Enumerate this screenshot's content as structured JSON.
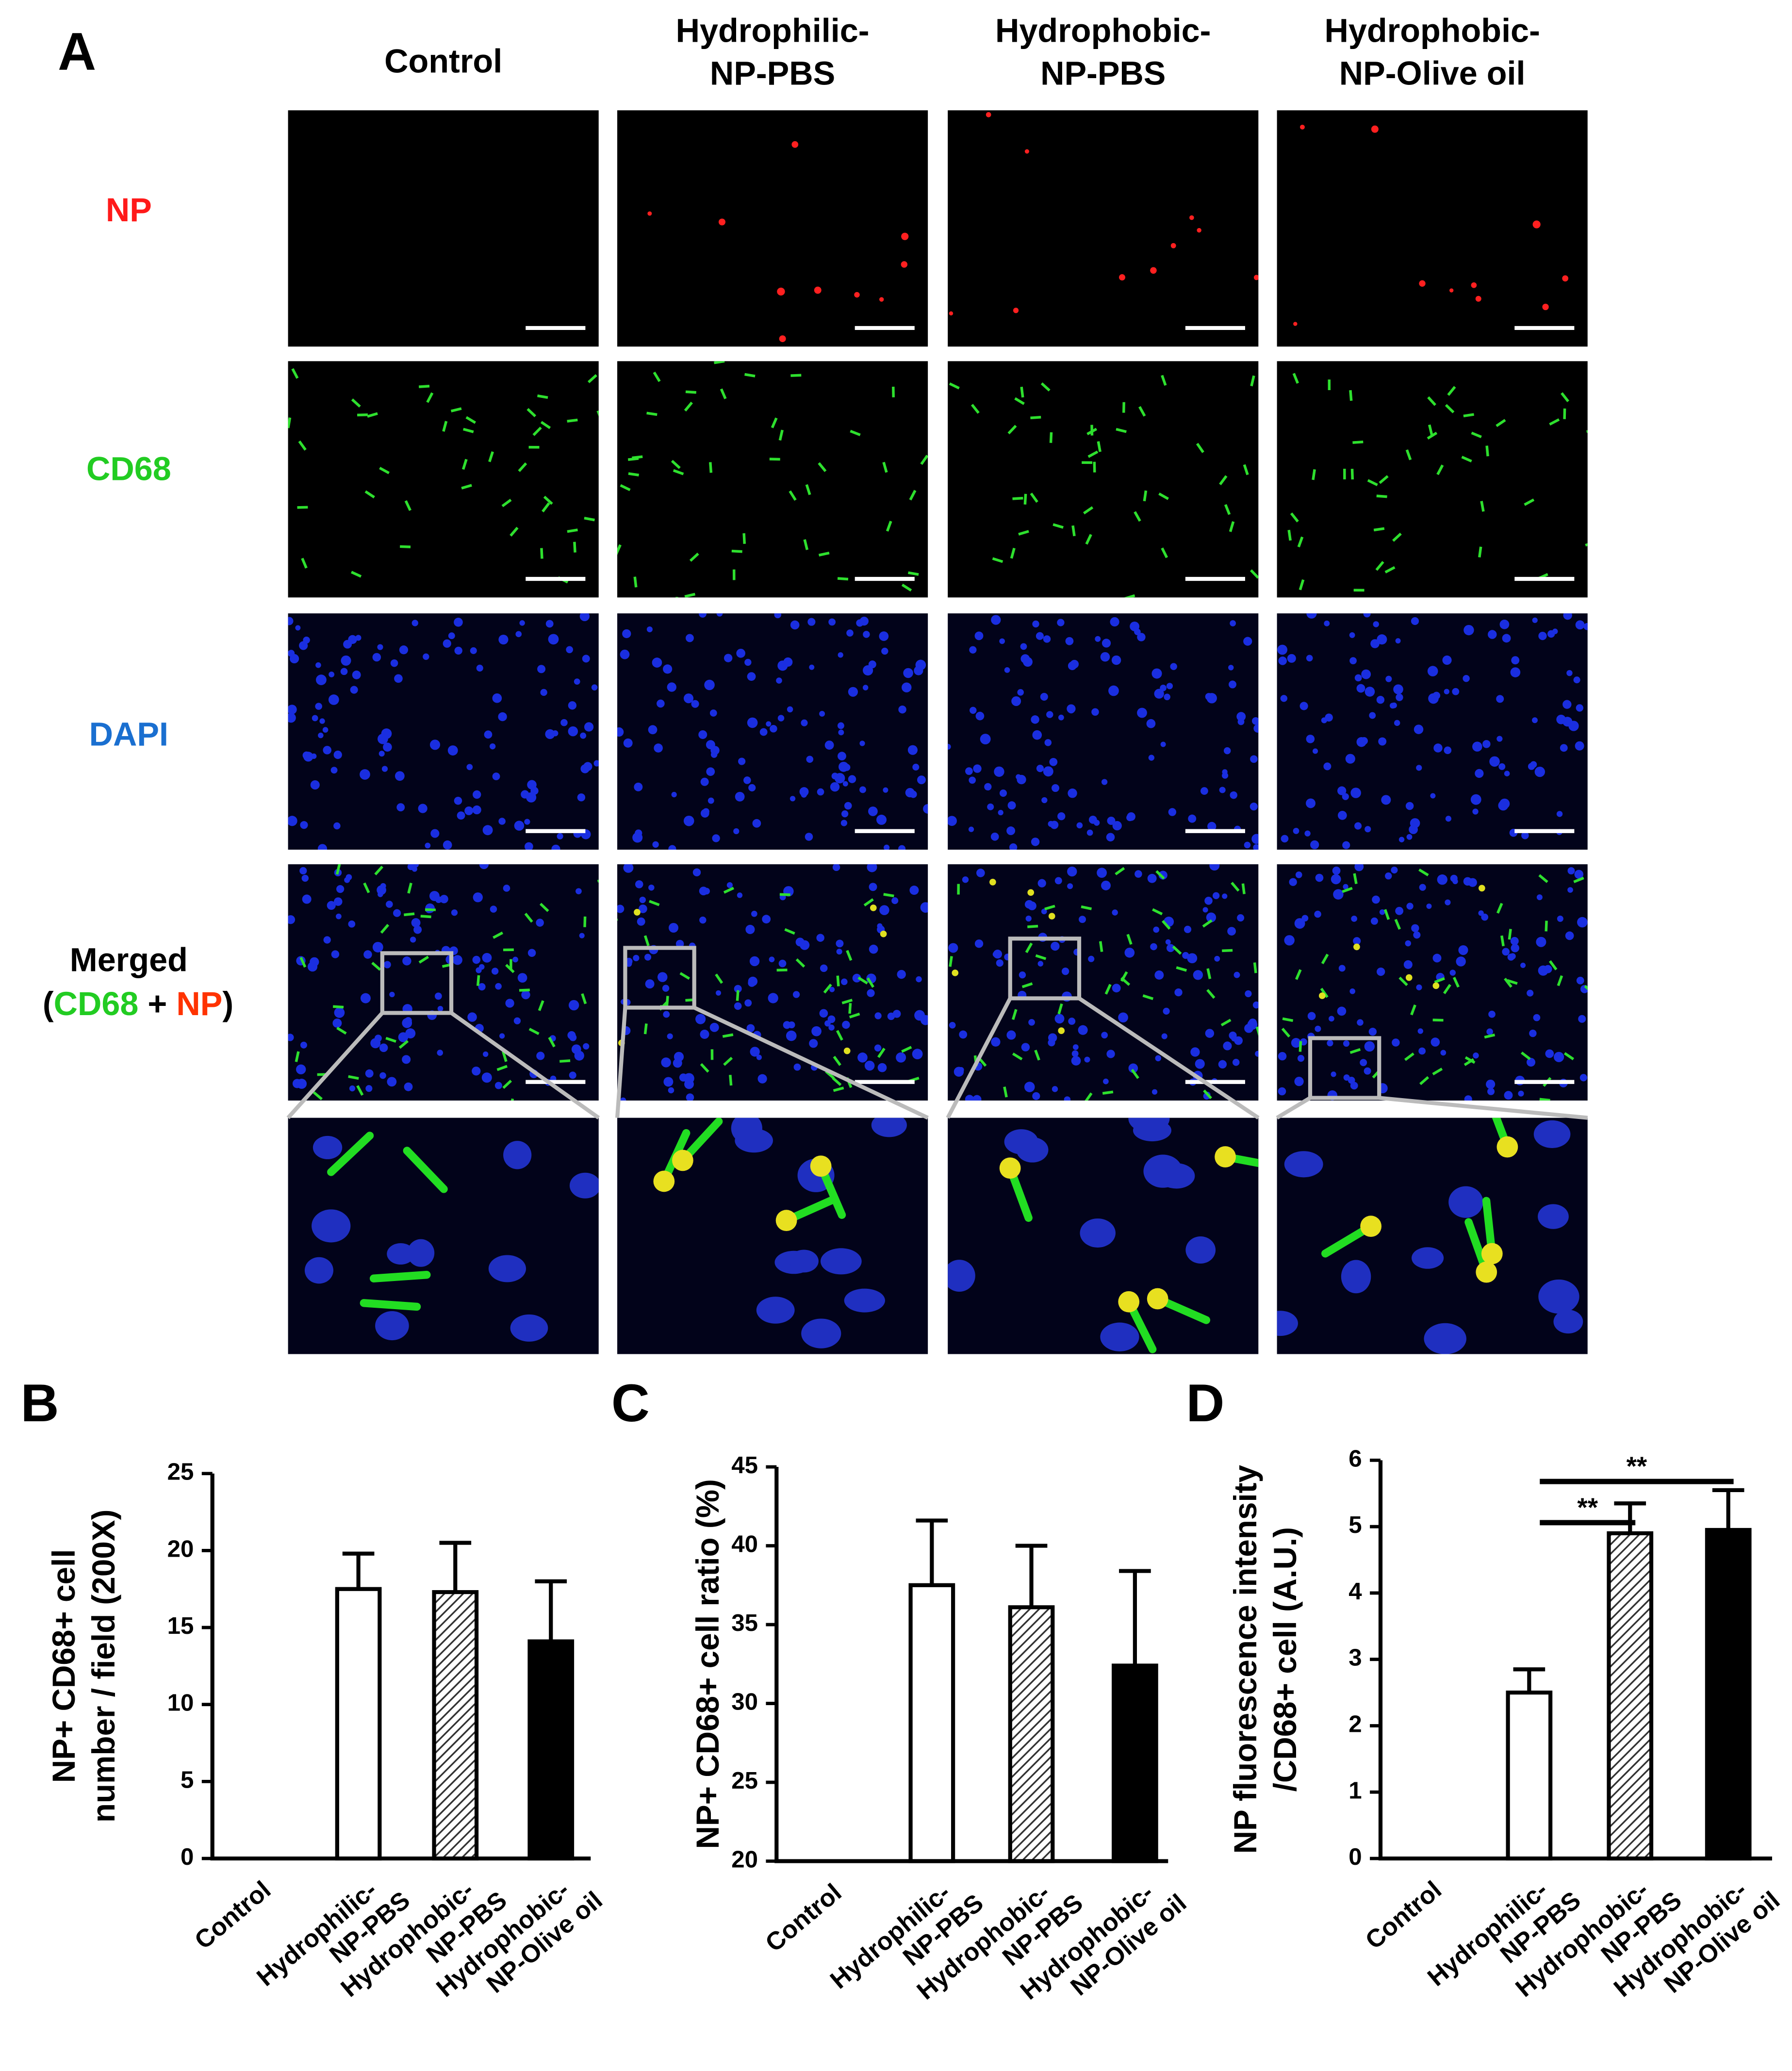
{
  "figure": {
    "panel": "A",
    "columns": [
      [
        "Control"
      ],
      [
        "Hydrophilic-",
        "NP-PBS"
      ],
      [
        "Hydrophobic-",
        "NP-PBS"
      ],
      [
        "Hydrophobic-",
        "NP-Olive oil"
      ]
    ],
    "rows": [
      {
        "label": "NP",
        "color": "#ff1a1a"
      },
      {
        "label": "CD68",
        "color": "#22cc22"
      },
      {
        "label": "DAPI",
        "color": "#1a6fd0"
      },
      {
        "label": "Merged",
        "parts": [
          "(",
          "CD68",
          " + ",
          "NP",
          ")"
        ],
        "part_colors": [
          "#000000",
          "#22cc22",
          "#000000",
          "#ff3300",
          "#000000"
        ]
      }
    ]
  },
  "chart_data": [
    {
      "type": "bar",
      "panel": "B",
      "ylabel": [
        "NP+ CD68+  cell",
        "number / field (200X)"
      ],
      "categories": [
        [
          "Control"
        ],
        [
          "Hydrophilic-",
          "NP-PBS"
        ],
        [
          "Hydrophobic-",
          "NP-PBS"
        ],
        [
          "Hydrophobic-",
          "NP-Olive oil"
        ]
      ],
      "values": [
        0,
        17.5,
        17.3,
        14.1
      ],
      "errors": [
        0,
        2.3,
        3.2,
        3.9
      ],
      "bar_styles": [
        "white",
        "white",
        "hatched",
        "black"
      ],
      "ylim": [
        0,
        25
      ],
      "yticks": [
        0,
        5,
        10,
        15,
        20,
        25
      ]
    },
    {
      "type": "bar",
      "panel": "C",
      "ylabel": [
        "NP+ CD68+ cell ratio (%)"
      ],
      "categories": [
        [
          "Control"
        ],
        [
          "Hydrophilic-",
          "NP-PBS"
        ],
        [
          "Hydrophobic-",
          "NP-PBS"
        ],
        [
          "Hydrophobic-",
          "NP-Olive oil"
        ]
      ],
      "values": [
        null,
        37.5,
        36.1,
        32.4
      ],
      "errors": [
        null,
        4.1,
        3.9,
        6.0
      ],
      "bar_styles": [
        "white",
        "white",
        "hatched",
        "black"
      ],
      "ylim": [
        20,
        45
      ],
      "yticks": [
        20,
        25,
        30,
        35,
        40,
        45
      ]
    },
    {
      "type": "bar",
      "panel": "D",
      "ylabel": [
        "NP fluorescence intensity",
        "/CD68+ cell (A.U.)"
      ],
      "categories": [
        [
          "Control"
        ],
        [
          "Hydrophilic-",
          "NP-PBS"
        ],
        [
          "Hydrophobic-",
          "NP-PBS"
        ],
        [
          "Hydrophobic-",
          "NP-Olive oil"
        ]
      ],
      "values": [
        0,
        2.5,
        4.9,
        4.95
      ],
      "errors": [
        0,
        0.35,
        0.45,
        0.6
      ],
      "bar_styles": [
        "white",
        "white",
        "hatched",
        "black"
      ],
      "ylim": [
        0,
        6
      ],
      "yticks": [
        0,
        1,
        2,
        3,
        4,
        5,
        6
      ],
      "significance": [
        {
          "from": 1,
          "to": 2,
          "label": "**"
        },
        {
          "from": 1,
          "to": 3,
          "label": "**"
        }
      ]
    }
  ]
}
